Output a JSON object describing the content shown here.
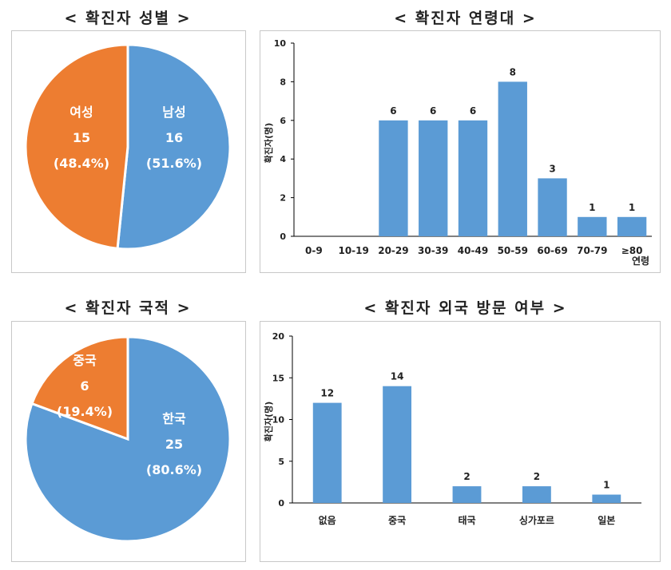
{
  "chart_data": [
    {
      "type": "pie",
      "title": "< 확진자 성별 >",
      "slices": [
        {
          "name": "남성",
          "value": 16,
          "pct": "(51.6%)",
          "color": "#5b9bd5"
        },
        {
          "name": "여성",
          "value": 15,
          "pct": "(48.4%)",
          "color": "#ed7d31"
        }
      ]
    },
    {
      "type": "bar",
      "title": "< 확진자 연령대 >",
      "ylabel": "확진자(명)",
      "xlabel": "연령",
      "ylim": [
        0,
        10
      ],
      "yticks": [
        0,
        2,
        4,
        6,
        8,
        10
      ],
      "categories": [
        "0-9",
        "10-19",
        "20-29",
        "30-39",
        "40-49",
        "50-59",
        "60-69",
        "70-79",
        "≥80"
      ],
      "values": [
        0,
        0,
        6,
        6,
        6,
        8,
        3,
        1,
        1
      ],
      "color": "#5b9bd5"
    },
    {
      "type": "pie",
      "title": "< 확진자 국적 >",
      "slices": [
        {
          "name": "한국",
          "value": 25,
          "pct": "(80.6%)",
          "color": "#5b9bd5"
        },
        {
          "name": "중국",
          "value": 6,
          "pct": "(19.4%)",
          "color": "#ed7d31"
        }
      ]
    },
    {
      "type": "bar",
      "title": "< 확진자 외국 방문 여부 >",
      "ylabel": "확진자(명)",
      "xlabel": "",
      "ylim": [
        0,
        20
      ],
      "yticks": [
        0,
        5,
        10,
        15,
        20
      ],
      "categories": [
        "없음",
        "중국",
        "태국",
        "싱가포르",
        "일본"
      ],
      "values": [
        12,
        14,
        2,
        2,
        1
      ],
      "color": "#5b9bd5"
    }
  ]
}
